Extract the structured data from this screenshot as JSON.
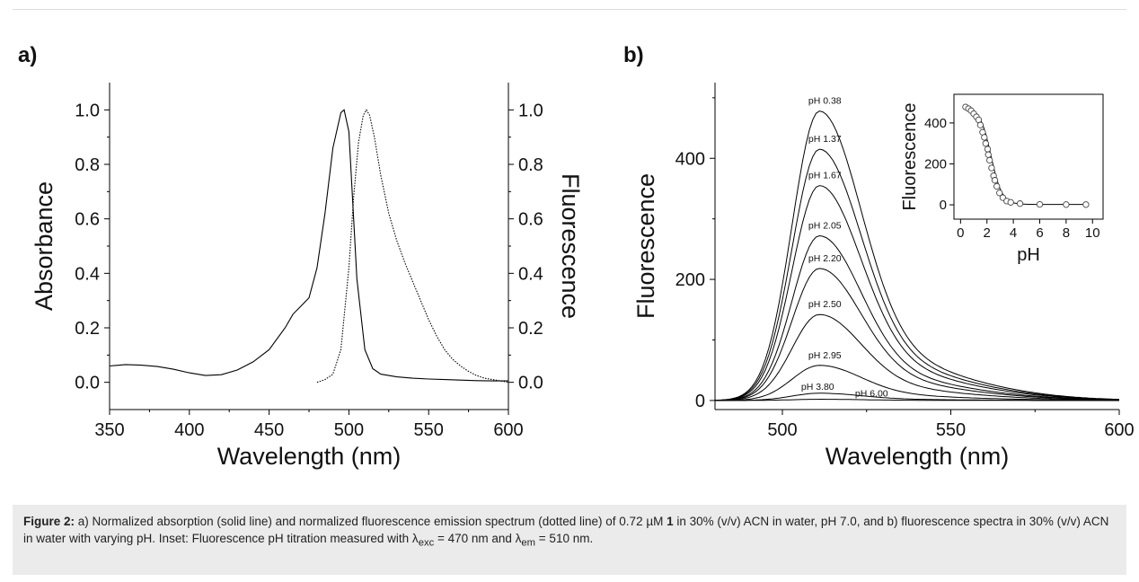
{
  "chart_data": [
    {
      "panel_label": "a)",
      "type": "line",
      "xlabel": "Wavelength (nm)",
      "ylabel_left": "Absorbance",
      "ylabel_right": "Fluorescence",
      "xlim": [
        350,
        600
      ],
      "ylim": [
        -0.1,
        1.1
      ],
      "x_ticks": [
        "350",
        "400",
        "450",
        "500",
        "550",
        "600"
      ],
      "y_ticks_left": [
        "0.0",
        "0.2",
        "0.4",
        "0.6",
        "0.8",
        "1.0"
      ],
      "y_ticks_right": [
        "0.0",
        "0.2",
        "0.4",
        "0.6",
        "0.8",
        "1.0"
      ],
      "series": [
        {
          "style": "solid",
          "x": [
            350,
            360,
            370,
            380,
            390,
            400,
            410,
            420,
            430,
            440,
            450,
            460,
            465,
            470,
            475,
            480,
            485,
            490,
            495,
            497,
            500,
            503,
            505,
            510,
            515,
            520,
            530,
            540,
            550,
            560,
            570,
            580,
            590,
            600
          ],
          "y": [
            0.06,
            0.065,
            0.063,
            0.058,
            0.048,
            0.035,
            0.025,
            0.028,
            0.045,
            0.075,
            0.12,
            0.2,
            0.25,
            0.28,
            0.31,
            0.42,
            0.62,
            0.86,
            0.99,
            1.0,
            0.92,
            0.6,
            0.38,
            0.12,
            0.05,
            0.03,
            0.02,
            0.015,
            0.012,
            0.01,
            0.008,
            0.006,
            0.005,
            0.005
          ]
        },
        {
          "style": "dotted",
          "x": [
            480,
            485,
            490,
            495,
            500,
            503,
            506,
            509,
            511,
            513,
            516,
            520,
            525,
            530,
            535,
            540,
            545,
            550,
            555,
            560,
            565,
            570,
            575,
            580,
            585,
            590,
            595,
            600
          ],
          "y": [
            0.0,
            0.01,
            0.03,
            0.12,
            0.42,
            0.68,
            0.88,
            0.98,
            1.0,
            0.98,
            0.9,
            0.76,
            0.62,
            0.52,
            0.44,
            0.37,
            0.3,
            0.23,
            0.17,
            0.12,
            0.085,
            0.06,
            0.04,
            0.025,
            0.015,
            0.01,
            0.005,
            0.0
          ]
        }
      ]
    },
    {
      "panel_label": "b)",
      "type": "line",
      "xlabel": "Wavelength (nm)",
      "ylabel": "Fluorescence",
      "xlim": [
        480,
        600
      ],
      "ylim": [
        -15,
        525
      ],
      "x_ticks": [
        "500",
        "550",
        "600"
      ],
      "y_ticks": [
        "0",
        "200",
        "400"
      ],
      "peak_x": 511,
      "series": [
        {
          "name": "pH 0.38",
          "peak": 478
        },
        {
          "name": "pH 1.37",
          "peak": 415
        },
        {
          "name": "pH 1.67",
          "peak": 355
        },
        {
          "name": "pH 2.05",
          "peak": 272
        },
        {
          "name": "pH 2.20",
          "peak": 218
        },
        {
          "name": "pH 2.50",
          "peak": 142
        },
        {
          "name": "pH 2.95",
          "peak": 58
        },
        {
          "name": "pH 3.80",
          "peak": 12
        },
        {
          "name": "pH 6.00",
          "peak": 2
        }
      ],
      "inset": {
        "type": "scatter",
        "xlabel": "pH",
        "ylabel": "Fluorescence",
        "xlim": [
          -0.5,
          10.8
        ],
        "ylim": [
          -70,
          540
        ],
        "x_ticks": [
          "0",
          "2",
          "4",
          "6",
          "8",
          "10"
        ],
        "y_ticks": [
          "0",
          "200",
          "400"
        ],
        "x": [
          0.38,
          0.6,
          0.8,
          1.0,
          1.2,
          1.37,
          1.5,
          1.67,
          1.8,
          1.9,
          2.05,
          2.1,
          2.2,
          2.35,
          2.5,
          2.6,
          2.75,
          2.95,
          3.2,
          3.5,
          3.8,
          4.5,
          6.0,
          8.0,
          9.5
        ],
        "y": [
          478,
          470,
          460,
          445,
          430,
          415,
          390,
          355,
          330,
          300,
          272,
          245,
          218,
          180,
          142,
          120,
          90,
          58,
          35,
          18,
          12,
          6,
          2,
          1,
          1
        ]
      }
    }
  ],
  "caption": {
    "label": "Figure 2:",
    "t1": " a) Normalized absorption (solid line) and normalized fluorescence emission spectrum (dotted line) of 0.72 µM ",
    "compound": "1",
    "t2": " in 30% (v/v) ACN in water, pH 7.0, and b) fluorescence spectra in 30% (v/v) ACN in water with varying pH. Inset: Fluorescence pH titration measured with λ",
    "sub1": "exc",
    "t3": " = 470 nm and λ",
    "sub2": "em",
    "t4": " = 510 nm."
  }
}
